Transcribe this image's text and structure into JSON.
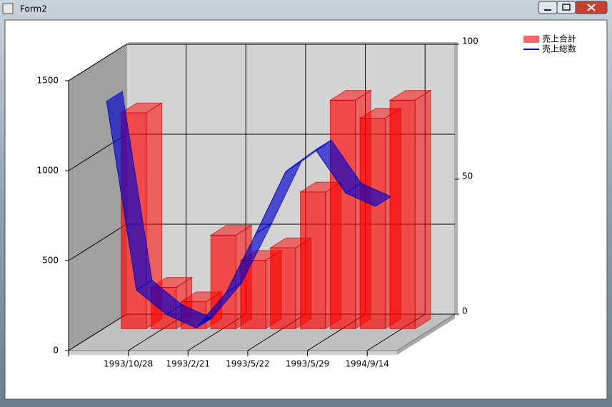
{
  "window": {
    "title": "Form2"
  },
  "chart_data": {
    "type": "bar3d",
    "categories": [
      "1993/10/28",
      null,
      "1993/2/21",
      null,
      "1993/5/22",
      null,
      "1993/5/29",
      null,
      "1994/9/14",
      null
    ],
    "series": [
      {
        "name": "売上合計",
        "color": "#ff0000",
        "values": [
          1200,
          230,
          150,
          520,
          380,
          450,
          760,
          1270,
          1170,
          1270
        ]
      },
      {
        "name": "売上総数",
        "color": "#0000cc",
        "axis": "y2",
        "type": "line",
        "values": [
          87,
          17,
          8,
          3,
          16,
          38,
          61,
          69,
          53,
          48
        ]
      }
    ],
    "ylim": [
      0,
      1500
    ],
    "yticks": [
      0,
      500,
      1000,
      1500
    ],
    "y2lim": [
      0,
      100
    ],
    "y2ticks": [
      0,
      50,
      100
    ],
    "grid": true,
    "legend": "top-right"
  }
}
